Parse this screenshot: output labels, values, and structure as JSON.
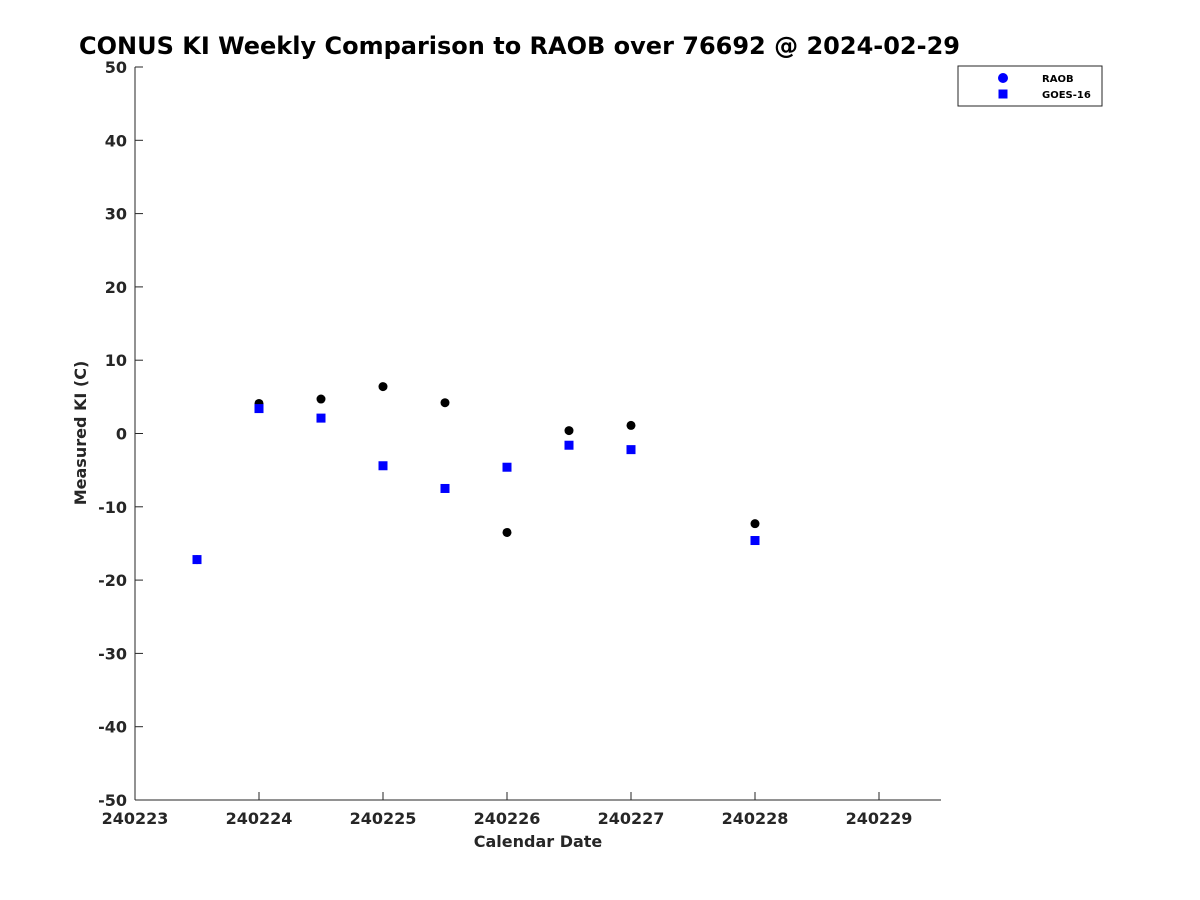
{
  "chart_data": {
    "type": "scatter",
    "title": "CONUS KI Weekly Comparison to RAOB over 76692 @ 2024-02-29",
    "xlabel": "Calendar Date",
    "ylabel": "Measured KI (C)",
    "xlim": [
      240223,
      240229.5
    ],
    "ylim": [
      -50,
      50
    ],
    "x_tick_values": [
      240223,
      240224,
      240225,
      240226,
      240227,
      240228,
      240229
    ],
    "x_tick_labels": [
      "240223",
      "240224",
      "240225",
      "240226",
      "240227",
      "240228",
      "240229"
    ],
    "y_tick_values": [
      50,
      40,
      30,
      20,
      10,
      0,
      -10,
      -20,
      -30,
      -40,
      -50
    ],
    "y_tick_labels": [
      "50",
      "40",
      "30",
      "20",
      "10",
      "0",
      "-10",
      "-20",
      "-30",
      "-40",
      "-50"
    ],
    "grid": false,
    "legend_position": "top-right",
    "series": [
      {
        "name": "RAOB",
        "marker": "circle",
        "legend_color": "#0000ff",
        "point_color": "#000000",
        "x": [
          240223.5,
          240224,
          240224.5,
          240225,
          240225.5,
          240226,
          240226.5,
          240227,
          240228
        ],
        "y": [
          -17.2,
          4.1,
          4.7,
          6.4,
          4.2,
          -13.5,
          0.4,
          1.1,
          -12.3
        ]
      },
      {
        "name": "GOES-16",
        "marker": "square",
        "legend_color": "#0000ff",
        "point_color": "#0000ff",
        "x": [
          240223.5,
          240224,
          240224.5,
          240225,
          240225.5,
          240226,
          240226.5,
          240227,
          240228
        ],
        "y": [
          -17.2,
          3.4,
          2.1,
          -4.4,
          -7.5,
          -4.6,
          -1.6,
          -2.2,
          -14.6
        ]
      }
    ]
  }
}
